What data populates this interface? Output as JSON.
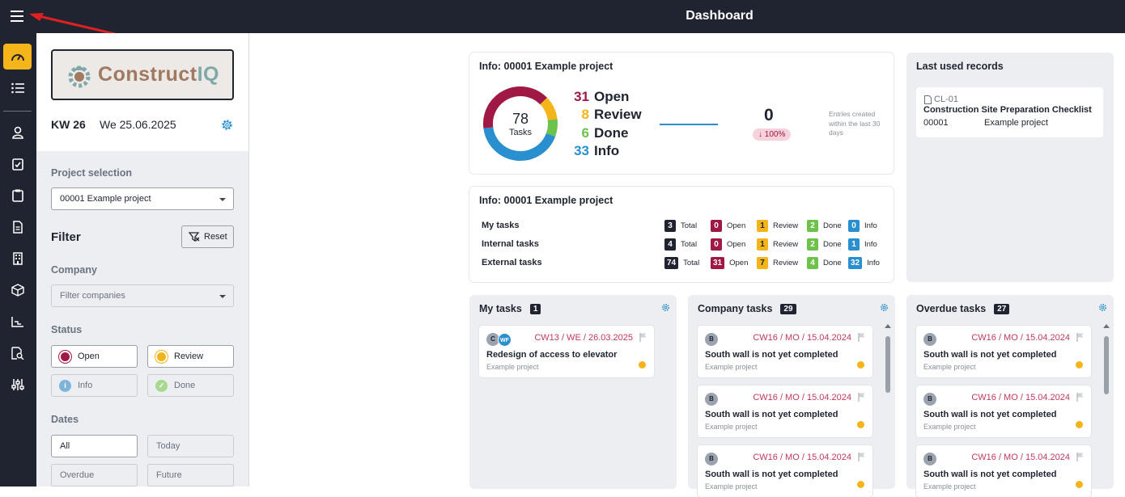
{
  "header": {
    "title": "Dashboard"
  },
  "sidebar": {
    "kw": "KW 26",
    "date": "We 25.06.2025",
    "logo_text_1": "Construct",
    "logo_text_2": "IQ",
    "project_label": "Project selection",
    "project_value": "00001 Example project",
    "filter_title": "Filter",
    "reset_label": "Reset",
    "company_label": "Company",
    "company_placeholder": "Filter companies",
    "status_label": "Status",
    "status": {
      "open": "Open",
      "review": "Review",
      "info": "Info",
      "done": "Done"
    },
    "dates_label": "Dates",
    "dates": {
      "all": "All",
      "today": "Today",
      "overdue": "Overdue",
      "future": "Future"
    }
  },
  "info1": {
    "title": "Info: 00001 Example project",
    "donut_total": "78",
    "donut_label": "Tasks",
    "stats": [
      {
        "n": "31",
        "label": "Open",
        "color": "#a01844"
      },
      {
        "n": "8",
        "label": "Review",
        "color": "#f4b41a"
      },
      {
        "n": "6",
        "label": "Done",
        "color": "#6cc24a"
      },
      {
        "n": "33",
        "label": "Info",
        "color": "#2a8fcf"
      }
    ],
    "new_entries": "0",
    "change": "↓ 100%",
    "note": "Entries created within the last 30 days"
  },
  "info2": {
    "title": "Info: 00001 Example project",
    "rows": [
      {
        "label": "My tasks",
        "total": "3",
        "open": "0",
        "review": "1",
        "done": "2",
        "info": "0"
      },
      {
        "label": "Internal tasks",
        "total": "4",
        "open": "0",
        "review": "1",
        "done": "2",
        "info": "1"
      },
      {
        "label": "External tasks",
        "total": "74",
        "open": "31",
        "review": "7",
        "done": "4",
        "info": "32"
      }
    ],
    "col_labels": {
      "total": "Total",
      "open": "Open",
      "review": "Review",
      "done": "Done",
      "info": "Info"
    }
  },
  "last_used": {
    "title": "Last used records",
    "record": {
      "id": "CL-01",
      "name": "Construction Site Preparation Checklist",
      "number": "00001",
      "project": "Example project"
    }
  },
  "my_tasks": {
    "title": "My tasks",
    "count": "1",
    "tasks": [
      {
        "av1": "C",
        "av2": "WF",
        "due": "CW13 / WE / 26.03.2025",
        "title": "Redesign of access to elevator",
        "project": "Example project"
      }
    ]
  },
  "company_tasks": {
    "title": "Company tasks",
    "count": "29",
    "tasks": [
      {
        "av1": "B",
        "due": "CW16 / MO / 15.04.2024",
        "title": "South wall is not yet completed",
        "project": "Example project"
      },
      {
        "av1": "B",
        "due": "CW16 / MO / 15.04.2024",
        "title": "South wall is not yet completed",
        "project": "Example project"
      },
      {
        "av1": "B",
        "due": "CW16 / MO / 15.04.2024",
        "title": "South wall is not yet completed",
        "project": "Example project"
      }
    ]
  },
  "overdue_tasks": {
    "title": "Overdue tasks",
    "count": "27",
    "tasks": [
      {
        "av1": "B",
        "due": "CW16 / MO / 15.04.2024",
        "title": "South wall is not yet completed",
        "project": "Example project"
      },
      {
        "av1": "B",
        "due": "CW16 / MO / 15.04.2024",
        "title": "South wall is not yet completed",
        "project": "Example project"
      },
      {
        "av1": "B",
        "due": "CW16 / MO / 15.04.2024",
        "title": "South wall is not yet completed",
        "project": "Example project"
      }
    ]
  },
  "colors": {
    "open": "#a01844",
    "review": "#f4b41a",
    "done": "#6cc24a",
    "info": "#2a8fcf",
    "dark": "#1f2430"
  }
}
